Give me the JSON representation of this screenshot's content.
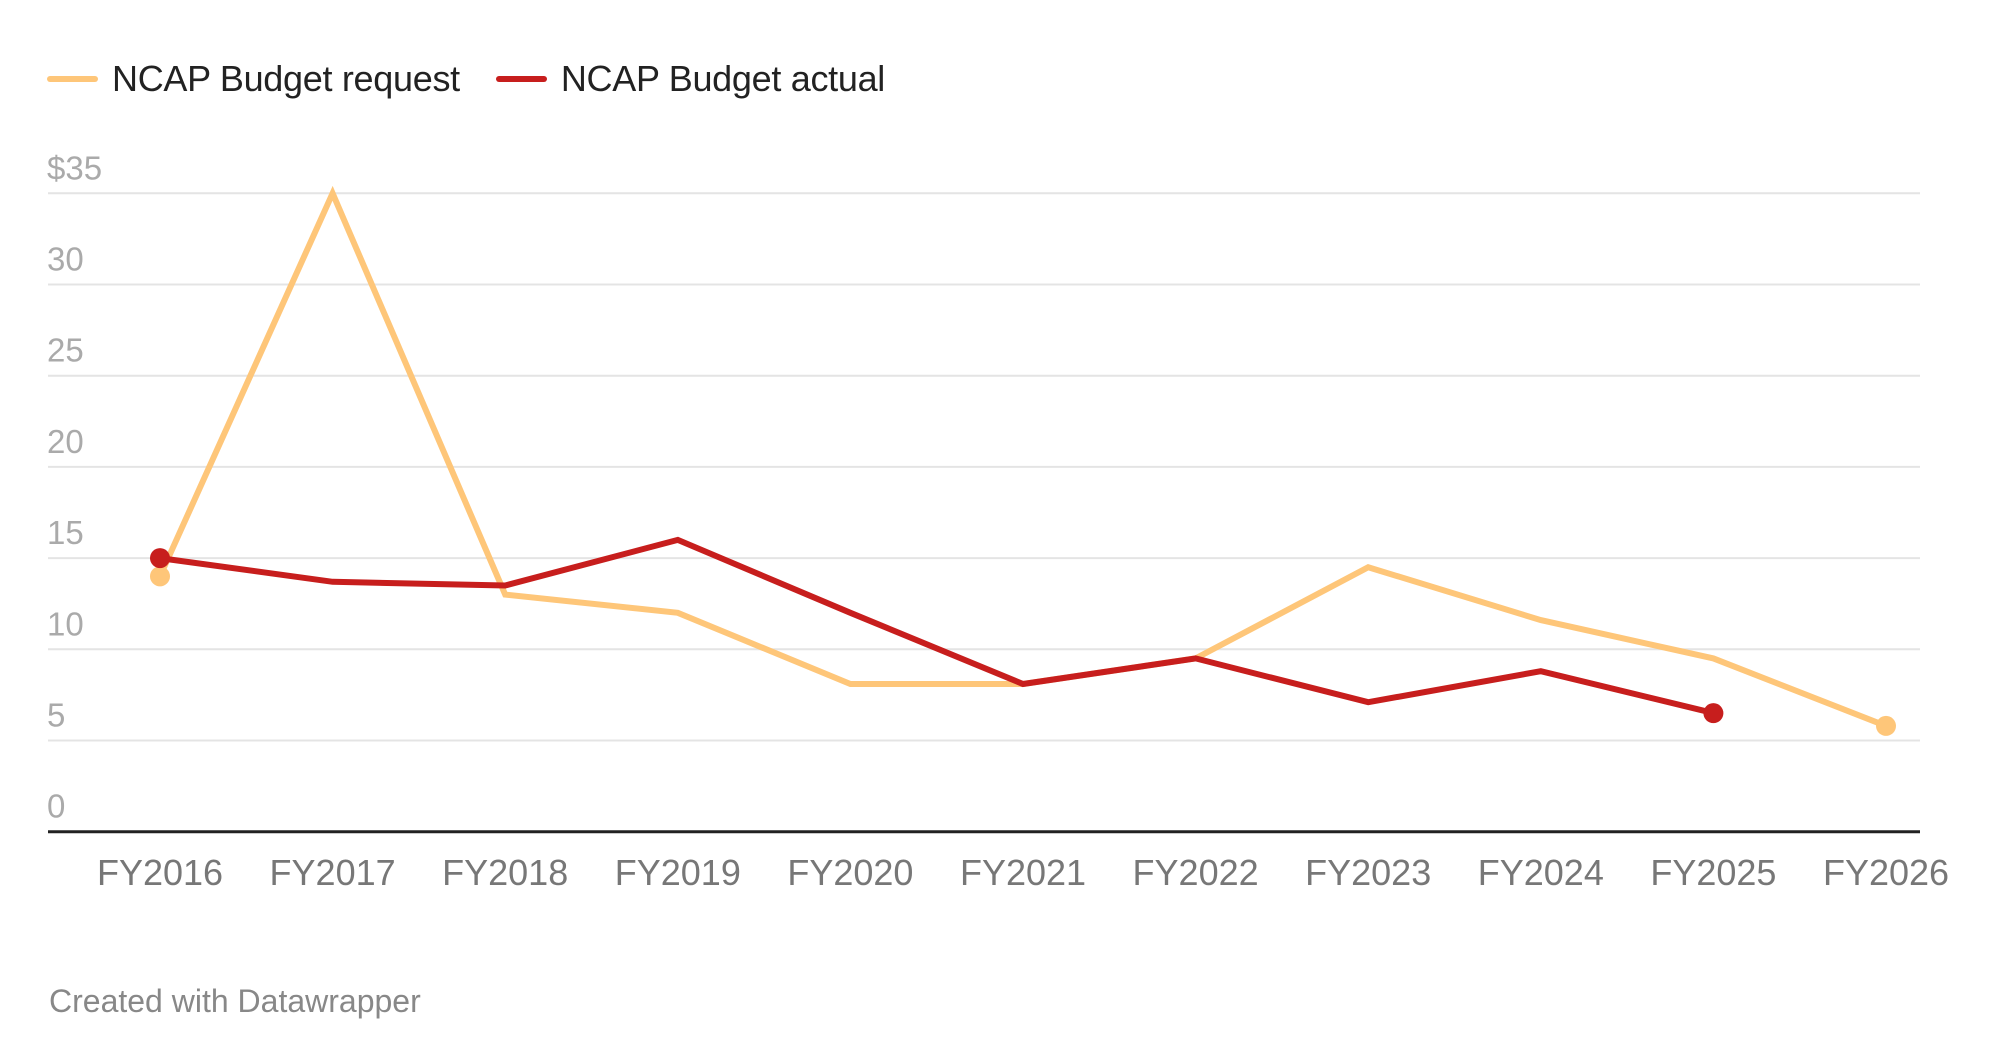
{
  "chart_data": {
    "type": "line",
    "title": "",
    "xlabel": "",
    "ylabel": "",
    "categories": [
      "FY2016",
      "FY2017",
      "FY2018",
      "FY2019",
      "FY2020",
      "FY2021",
      "FY2022",
      "FY2023",
      "FY2024",
      "FY2025",
      "FY2026"
    ],
    "series": [
      {
        "name": "NCAP Budget request",
        "color": "#fec679",
        "values": [
          14.0,
          35.0,
          13.0,
          12.0,
          8.1,
          8.1,
          9.5,
          14.5,
          11.6,
          9.5,
          5.8
        ],
        "endpoint_markers": true
      },
      {
        "name": "NCAP Budget actual",
        "color": "#c71e1d",
        "values": [
          15.0,
          13.7,
          13.5,
          16.0,
          12.0,
          8.1,
          9.5,
          7.1,
          8.8,
          6.5,
          null
        ],
        "endpoint_markers": true
      }
    ],
    "ylim": [
      0,
      35
    ],
    "y_ticks": [
      {
        "value": 35,
        "label": "$35"
      },
      {
        "value": 30,
        "label": "30"
      },
      {
        "value": 25,
        "label": "25"
      },
      {
        "value": 20,
        "label": "20"
      },
      {
        "value": 15,
        "label": "15"
      },
      {
        "value": 10,
        "label": "10"
      },
      {
        "value": 5,
        "label": "5"
      },
      {
        "value": 0,
        "label": "0"
      }
    ],
    "grid": true,
    "legend": "top-left",
    "colors": {
      "gridline": "#e4e4e4",
      "baseline": "#222222"
    }
  },
  "legend": [
    {
      "label": "NCAP Budget request",
      "color": "#fec679"
    },
    {
      "label": "NCAP Budget actual",
      "color": "#c71e1d"
    }
  ],
  "footer": {
    "credit": "Created with Datawrapper"
  }
}
